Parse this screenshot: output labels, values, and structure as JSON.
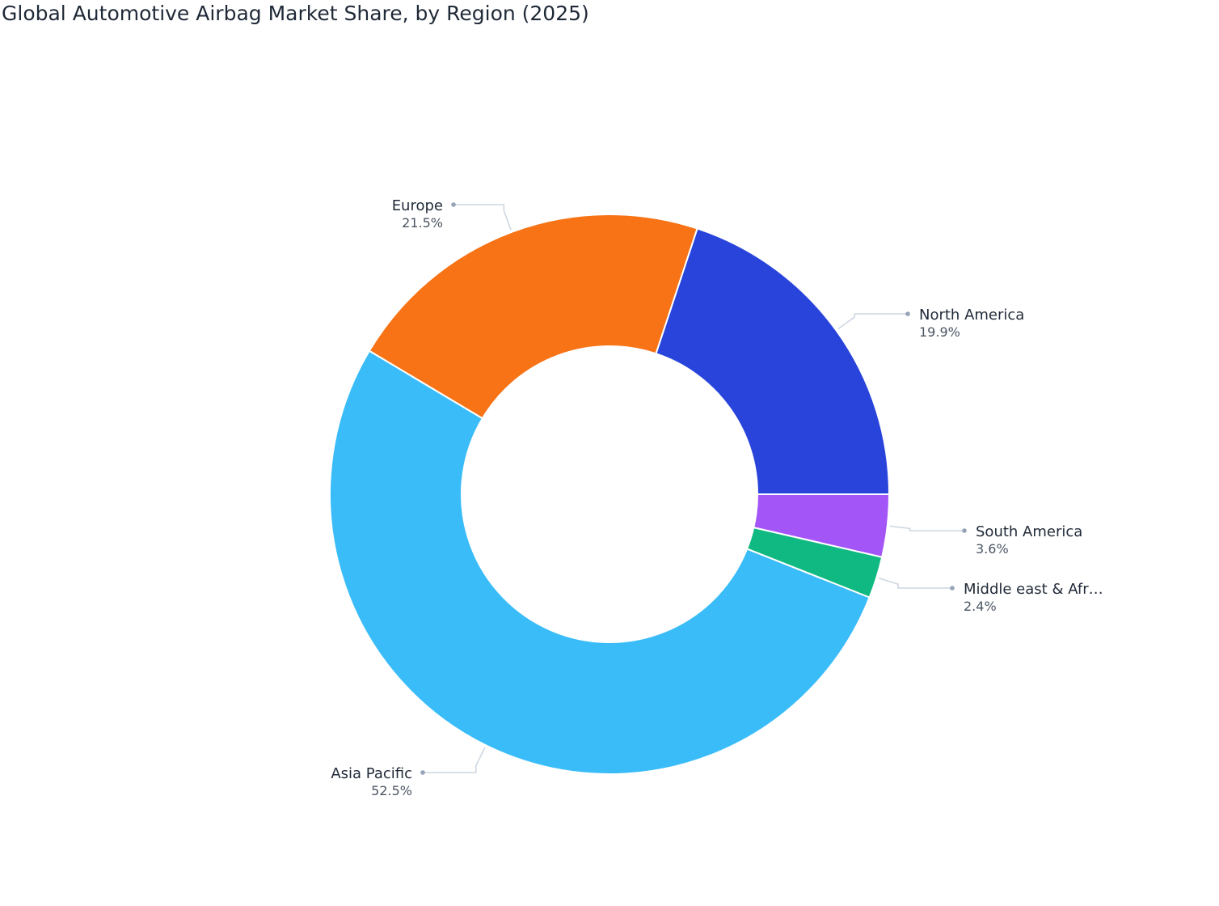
{
  "chart_data": {
    "type": "pie",
    "subtype": "donut",
    "title": "Global Automotive Airbag Market Share, by Region (2025)",
    "value_format": "percent",
    "segments": [
      {
        "label": "North America",
        "display_label": "North America",
        "value": 19.9,
        "value_label": "19.9%",
        "color": "#2844db"
      },
      {
        "label": "Europe",
        "display_label": "Europe",
        "value": 21.5,
        "value_label": "21.5%",
        "color": "#f77316"
      },
      {
        "label": "Asia Pacific",
        "display_label": "Asia Pacific",
        "value": 52.5,
        "value_label": "52.5%",
        "color": "#3abcf8"
      },
      {
        "label": "Middle east & Africa",
        "display_label": "Middle east & Afr…",
        "value": 2.4,
        "value_label": "2.4%",
        "color": "#10b981"
      },
      {
        "label": "South America",
        "display_label": "South America",
        "value": 3.6,
        "value_label": "3.6%",
        "color": "#a455f7"
      }
    ],
    "start": "3 o'clock",
    "direction": "counterclockwise",
    "legend": "none",
    "labels": "outside with leader lines"
  }
}
